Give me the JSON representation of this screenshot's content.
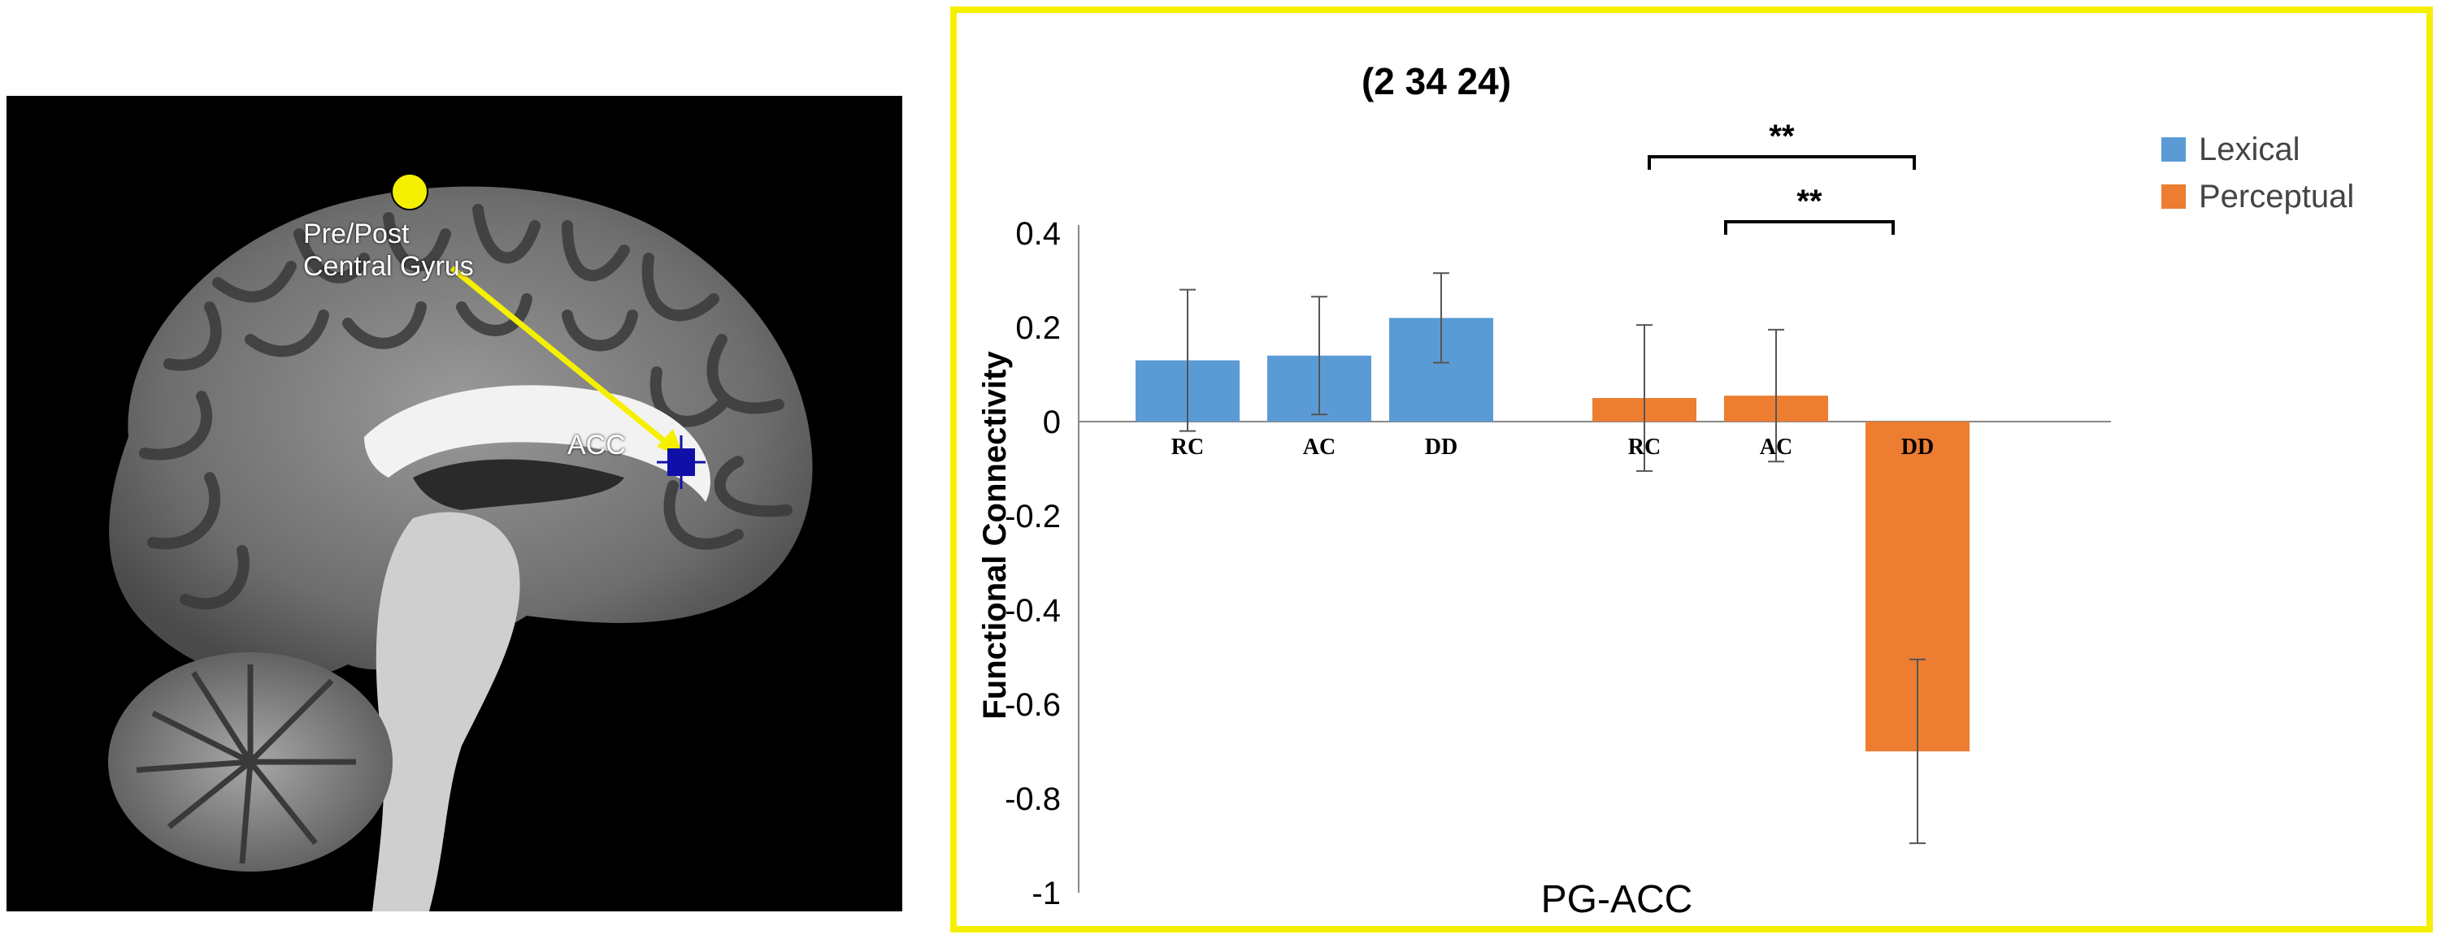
{
  "figure": {
    "brain": {
      "seed_label_line1": "Pre/Post",
      "seed_label_line2": "Central Gyrus",
      "target_label": "ACC",
      "colors": {
        "seed": "#f5f000",
        "target": "#1010a8",
        "arrow": "#f5f000"
      }
    }
  },
  "chart_data": {
    "type": "bar",
    "title": "(2 34 24)",
    "xlabel": "PG-ACC",
    "ylabel": "Functional Connectivity",
    "ylim": [
      -1,
      0.4
    ],
    "yticks": [
      0.4,
      0.2,
      0,
      -0.2,
      -0.4,
      -0.6,
      -0.8,
      -1
    ],
    "ytick_labels": [
      "0.4",
      "0.2",
      "0",
      "-0.2",
      "-0.4",
      "-0.6",
      "-0.8",
      "-1"
    ],
    "grid": false,
    "legend": {
      "position": "top-right"
    },
    "series": [
      {
        "name": "Lexical",
        "color": "#5b9bd5",
        "categories": [
          "RC",
          "AC",
          "DD"
        ],
        "values": [
          0.13,
          0.14,
          0.22
        ],
        "error": [
          0.15,
          0.125,
          0.095
        ]
      },
      {
        "name": "Perceptual",
        "color": "#ed7d31",
        "categories": [
          "RC",
          "AC",
          "DD"
        ],
        "values": [
          0.05,
          0.055,
          -0.7
        ],
        "error": [
          0.155,
          0.14,
          0.195
        ]
      }
    ],
    "annotations": [
      {
        "text": "**",
        "from": "Perceptual RC",
        "to": "Perceptual DD"
      },
      {
        "text": "**",
        "from": "Perceptual AC",
        "to": "Perceptual DD"
      }
    ]
  }
}
